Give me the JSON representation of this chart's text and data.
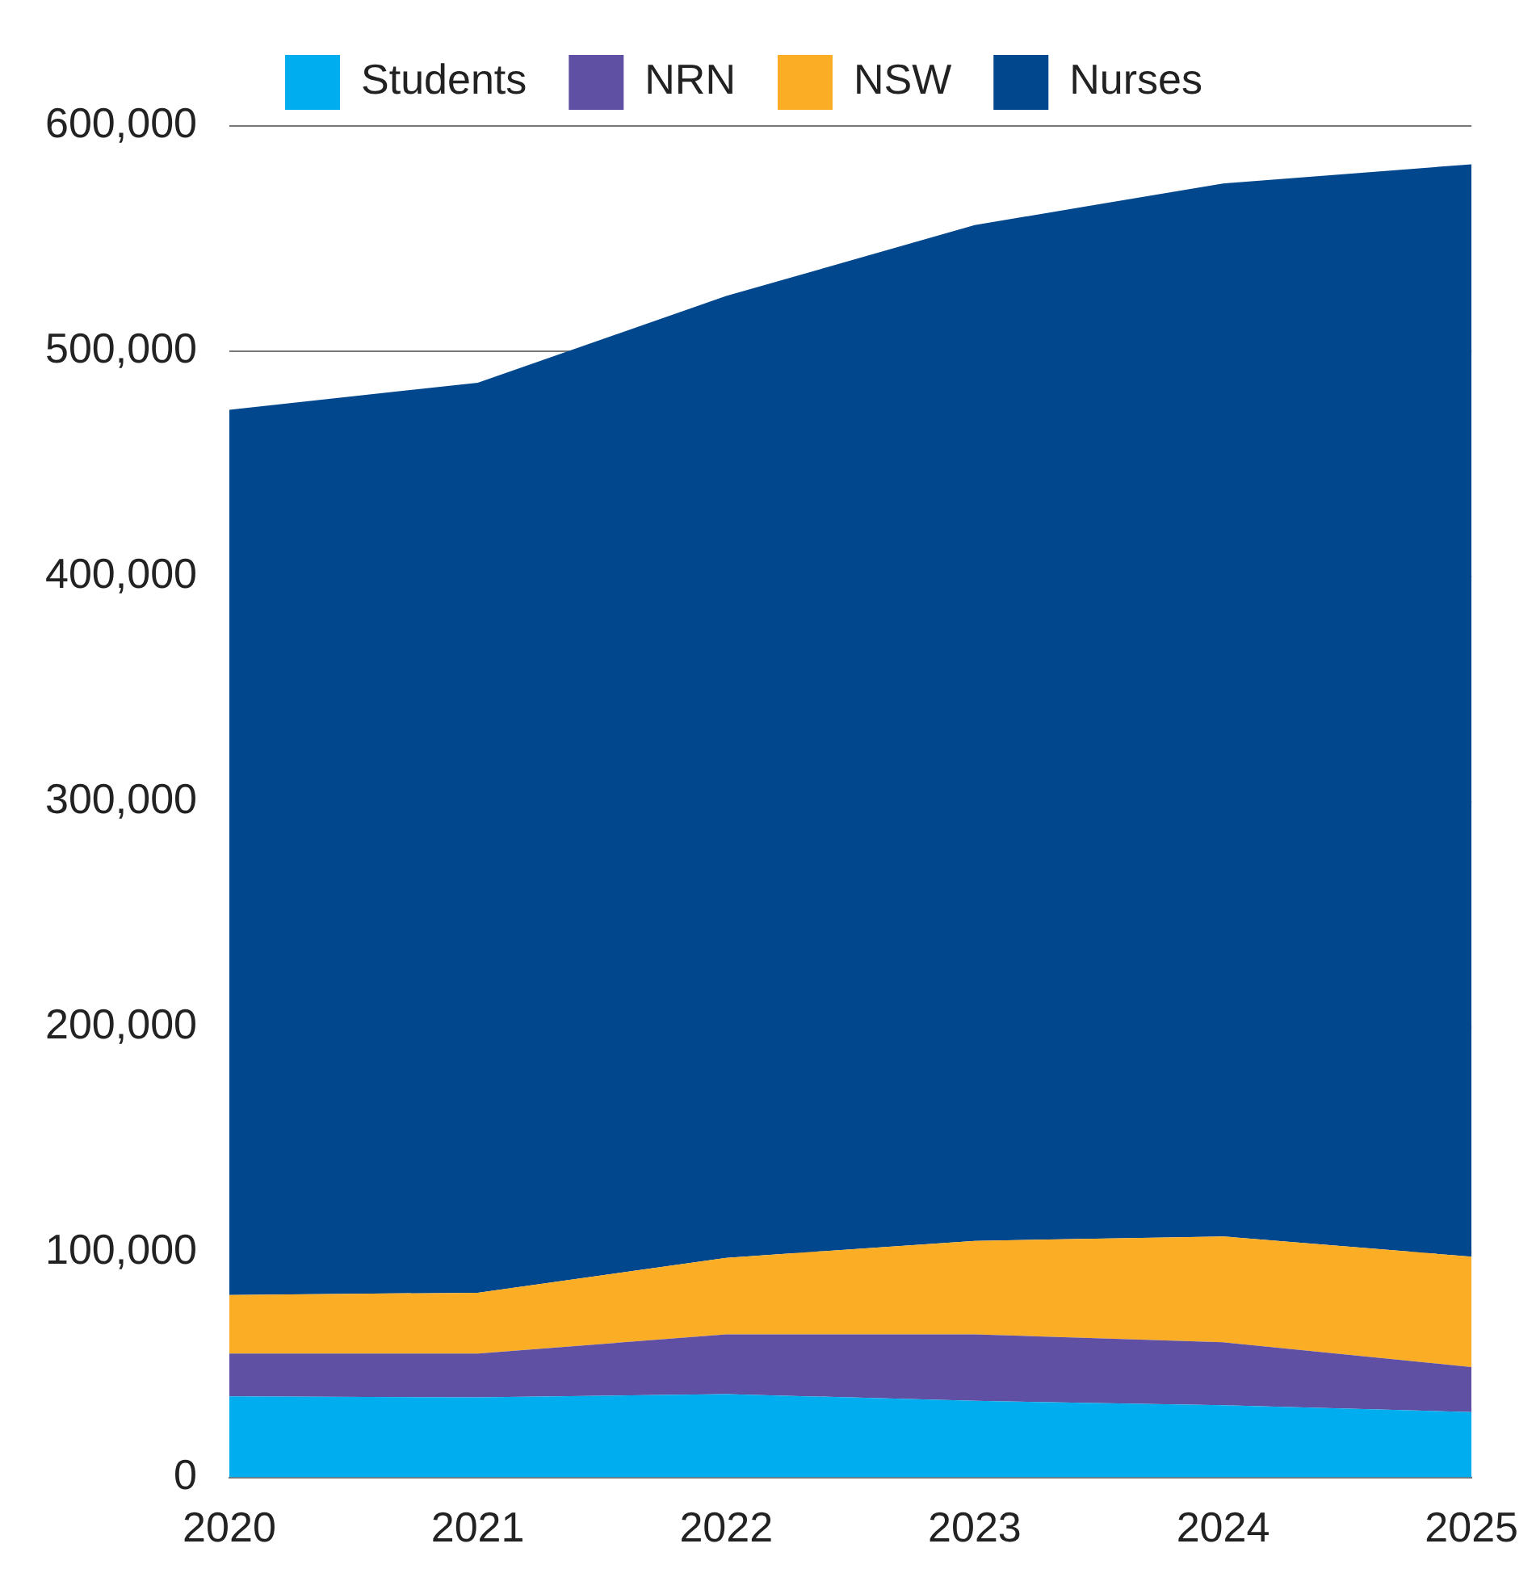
{
  "chart_data": {
    "type": "area",
    "categories": [
      "2020",
      "2021",
      "2022",
      "2023",
      "2024",
      "2025"
    ],
    "stacked": true,
    "series": [
      {
        "name": "Students",
        "color": "#00adef",
        "values": [
          36000,
          35500,
          37000,
          34000,
          32000,
          29000
        ]
      },
      {
        "name": "NRN",
        "color": "#6050a3",
        "values": [
          19000,
          19500,
          26500,
          29500,
          28000,
          20000
        ]
      },
      {
        "name": "NSW",
        "color": "#fbad25",
        "values": [
          26000,
          27000,
          34000,
          41500,
          47000,
          49000
        ]
      },
      {
        "name": "Nurses",
        "color": "#00478d",
        "values": [
          393000,
          404000,
          427000,
          451000,
          467500,
          485000
        ]
      }
    ],
    "ylim": [
      0,
      600000
    ],
    "yticks": [
      {
        "value": 0,
        "label": "0"
      },
      {
        "value": 100000,
        "label": "100,000"
      },
      {
        "value": 200000,
        "label": "200,000"
      },
      {
        "value": 300000,
        "label": "300,000"
      },
      {
        "value": 400000,
        "label": "400,000"
      },
      {
        "value": 500000,
        "label": "500,000"
      },
      {
        "value": 600000,
        "label": "600,000"
      }
    ],
    "grid": "y",
    "legend": "top"
  }
}
